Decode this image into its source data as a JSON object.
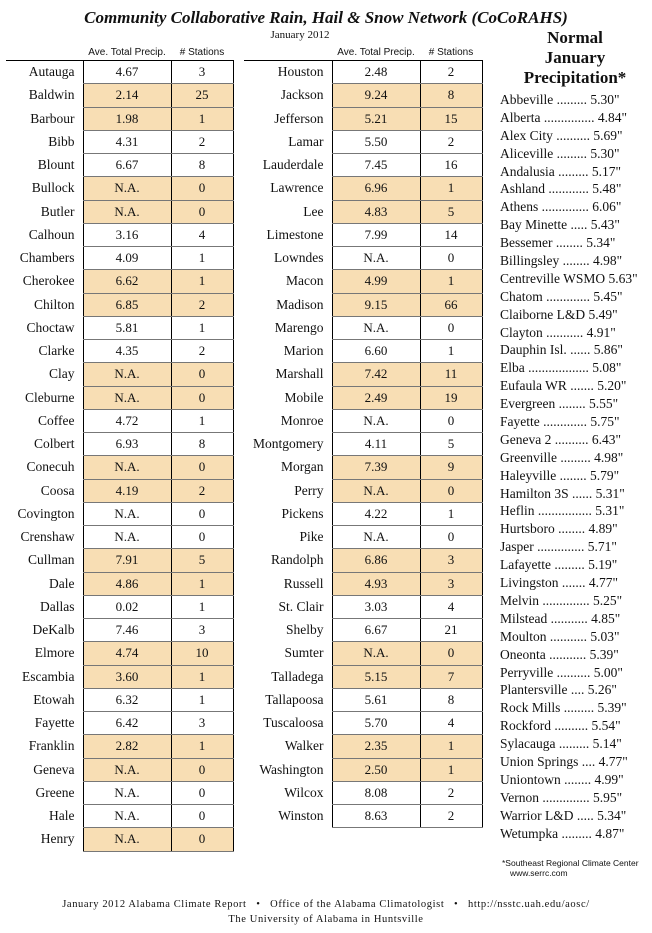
{
  "header": {
    "title": "Community Collaborative Rain, Hail & Snow Network (CoCoRAHS)",
    "subtitle": "January 2012",
    "col_precip": "Ave. Total Precip.",
    "col_stations": "# Stations"
  },
  "left_table": [
    {
      "county": "Autauga",
      "precip": "4.67",
      "stations": "3",
      "shaded": false
    },
    {
      "county": "Baldwin",
      "precip": "2.14",
      "stations": "25",
      "shaded": true
    },
    {
      "county": "Barbour",
      "precip": "1.98",
      "stations": "1",
      "shaded": true
    },
    {
      "county": "Bibb",
      "precip": "4.31",
      "stations": "2",
      "shaded": false
    },
    {
      "county": "Blount",
      "precip": "6.67",
      "stations": "8",
      "shaded": false
    },
    {
      "county": "Bullock",
      "precip": "N.A.",
      "stations": "0",
      "shaded": true
    },
    {
      "county": "Butler",
      "precip": "N.A.",
      "stations": "0",
      "shaded": true
    },
    {
      "county": "Calhoun",
      "precip": "3.16",
      "stations": "4",
      "shaded": false
    },
    {
      "county": "Chambers",
      "precip": "4.09",
      "stations": "1",
      "shaded": false
    },
    {
      "county": "Cherokee",
      "precip": "6.62",
      "stations": "1",
      "shaded": true
    },
    {
      "county": "Chilton",
      "precip": "6.85",
      "stations": "2",
      "shaded": true
    },
    {
      "county": "Choctaw",
      "precip": "5.81",
      "stations": "1",
      "shaded": false
    },
    {
      "county": "Clarke",
      "precip": "4.35",
      "stations": "2",
      "shaded": false
    },
    {
      "county": "Clay",
      "precip": "N.A.",
      "stations": "0",
      "shaded": true
    },
    {
      "county": "Cleburne",
      "precip": "N.A.",
      "stations": "0",
      "shaded": true
    },
    {
      "county": "Coffee",
      "precip": "4.72",
      "stations": "1",
      "shaded": false
    },
    {
      "county": "Colbert",
      "precip": "6.93",
      "stations": "8",
      "shaded": false
    },
    {
      "county": "Conecuh",
      "precip": "N.A.",
      "stations": "0",
      "shaded": true
    },
    {
      "county": "Coosa",
      "precip": "4.19",
      "stations": "2",
      "shaded": true
    },
    {
      "county": "Covington",
      "precip": "N.A.",
      "stations": "0",
      "shaded": false
    },
    {
      "county": "Crenshaw",
      "precip": "N.A.",
      "stations": "0",
      "shaded": false
    },
    {
      "county": "Cullman",
      "precip": "7.91",
      "stations": "5",
      "shaded": true
    },
    {
      "county": "Dale",
      "precip": "4.86",
      "stations": "1",
      "shaded": true
    },
    {
      "county": "Dallas",
      "precip": "0.02",
      "stations": "1",
      "shaded": false
    },
    {
      "county": "DeKalb",
      "precip": "7.46",
      "stations": "3",
      "shaded": false
    },
    {
      "county": "Elmore",
      "precip": "4.74",
      "stations": "10",
      "shaded": true
    },
    {
      "county": "Escambia",
      "precip": "3.60",
      "stations": "1",
      "shaded": true
    },
    {
      "county": "Etowah",
      "precip": "6.32",
      "stations": "1",
      "shaded": false
    },
    {
      "county": "Fayette",
      "precip": "6.42",
      "stations": "3",
      "shaded": false
    },
    {
      "county": "Franklin",
      "precip": "2.82",
      "stations": "1",
      "shaded": true
    },
    {
      "county": "Geneva",
      "precip": "N.A.",
      "stations": "0",
      "shaded": true
    },
    {
      "county": "Greene",
      "precip": "N.A.",
      "stations": "0",
      "shaded": false
    },
    {
      "county": "Hale",
      "precip": "N.A.",
      "stations": "0",
      "shaded": false
    },
    {
      "county": "Henry",
      "precip": "N.A.",
      "stations": "0",
      "shaded": true
    }
  ],
  "right_table": [
    {
      "county": "Houston",
      "precip": "2.48",
      "stations": "2",
      "shaded": false
    },
    {
      "county": "Jackson",
      "precip": "9.24",
      "stations": "8",
      "shaded": true
    },
    {
      "county": "Jefferson",
      "precip": "5.21",
      "stations": "15",
      "shaded": true
    },
    {
      "county": "Lamar",
      "precip": "5.50",
      "stations": "2",
      "shaded": false
    },
    {
      "county": "Lauderdale",
      "precip": "7.45",
      "stations": "16",
      "shaded": false
    },
    {
      "county": "Lawrence",
      "precip": "6.96",
      "stations": "1",
      "shaded": true
    },
    {
      "county": "Lee",
      "precip": "4.83",
      "stations": "5",
      "shaded": true
    },
    {
      "county": "Limestone",
      "precip": "7.99",
      "stations": "14",
      "shaded": false
    },
    {
      "county": "Lowndes",
      "precip": "N.A.",
      "stations": "0",
      "shaded": false
    },
    {
      "county": "Macon",
      "precip": "4.99",
      "stations": "1",
      "shaded": true
    },
    {
      "county": "Madison",
      "precip": "9.15",
      "stations": "66",
      "shaded": true
    },
    {
      "county": "Marengo",
      "precip": "N.A.",
      "stations": "0",
      "shaded": false
    },
    {
      "county": "Marion",
      "precip": "6.60",
      "stations": "1",
      "shaded": false
    },
    {
      "county": "Marshall",
      "precip": "7.42",
      "stations": "11",
      "shaded": true
    },
    {
      "county": "Mobile",
      "precip": "2.49",
      "stations": "19",
      "shaded": true
    },
    {
      "county": "Monroe",
      "precip": "N.A.",
      "stations": "0",
      "shaded": false
    },
    {
      "county": "Montgomery",
      "precip": "4.11",
      "stations": "5",
      "shaded": false
    },
    {
      "county": "Morgan",
      "precip": "7.39",
      "stations": "9",
      "shaded": true
    },
    {
      "county": "Perry",
      "precip": "N.A.",
      "stations": "0",
      "shaded": true
    },
    {
      "county": "Pickens",
      "precip": "4.22",
      "stations": "1",
      "shaded": false
    },
    {
      "county": "Pike",
      "precip": "N.A.",
      "stations": "0",
      "shaded": false
    },
    {
      "county": "Randolph",
      "precip": "6.86",
      "stations": "3",
      "shaded": true
    },
    {
      "county": "Russell",
      "precip": "4.93",
      "stations": "3",
      "shaded": true
    },
    {
      "county": "St. Clair",
      "precip": "3.03",
      "stations": "4",
      "shaded": false
    },
    {
      "county": "Shelby",
      "precip": "6.67",
      "stations": "21",
      "shaded": false
    },
    {
      "county": "Sumter",
      "precip": "N.A.",
      "stations": "0",
      "shaded": true
    },
    {
      "county": "Talladega",
      "precip": "5.15",
      "stations": "7",
      "shaded": true
    },
    {
      "county": "Tallapoosa",
      "precip": "5.61",
      "stations": "8",
      "shaded": false
    },
    {
      "county": "Tuscaloosa",
      "precip": "5.70",
      "stations": "4",
      "shaded": false
    },
    {
      "county": "Walker",
      "precip": "2.35",
      "stations": "1",
      "shaded": true
    },
    {
      "county": "Washington",
      "precip": "2.50",
      "stations": "1",
      "shaded": true
    },
    {
      "county": "Wilcox",
      "precip": "8.08",
      "stations": "2",
      "shaded": false
    },
    {
      "county": "Winston",
      "precip": "8.63",
      "stations": "2",
      "shaded": false
    }
  ],
  "normal_precip": {
    "title_line1": "Normal",
    "title_line2": "January",
    "title_line3": "Precipitation*",
    "entries": [
      {
        "station": "Abbeville",
        "dots": " .........",
        "value": "5.30\""
      },
      {
        "station": "Alberta",
        "dots": " ...............",
        "value": "4.84\""
      },
      {
        "station": "Alex City",
        "dots": " ..........",
        "value": "5.69\""
      },
      {
        "station": "Aliceville",
        "dots": " .........",
        "value": "5.30\""
      },
      {
        "station": "Andalusia",
        "dots": " .........",
        "value": "5.17\""
      },
      {
        "station": "Ashland",
        "dots": " ............",
        "value": "5.48\""
      },
      {
        "station": "Athens",
        "dots": " ..............",
        "value": "6.06\""
      },
      {
        "station": "Bay Minette",
        "dots": " .....",
        "value": "5.43\""
      },
      {
        "station": "Bessemer",
        "dots": " ........",
        "value": "5.34\""
      },
      {
        "station": "Billingsley",
        "dots": " ........",
        "value": "4.98\""
      },
      {
        "station": "Centreville WSMO",
        "dots": "",
        "value": "5.63\""
      },
      {
        "station": "Chatom",
        "dots": " .............",
        "value": "5.45\""
      },
      {
        "station": "Claiborne L&D",
        "dots": "",
        "value": "5.49\""
      },
      {
        "station": "Clayton",
        "dots": " ...........",
        "value": "4.91\""
      },
      {
        "station": "Dauphin Isl.",
        "dots": " ......",
        "value": "5.86\""
      },
      {
        "station": "Elba",
        "dots": " ..................",
        "value": "5.08\""
      },
      {
        "station": "Eufaula WR",
        "dots": " .......",
        "value": "5.20\""
      },
      {
        "station": "Evergreen",
        "dots": " ........",
        "value": "5.55\""
      },
      {
        "station": "Fayette",
        "dots": " .............",
        "value": "5.75\""
      },
      {
        "station": "Geneva 2",
        "dots": " ..........",
        "value": "6.43\""
      },
      {
        "station": "Greenville",
        "dots": " .........",
        "value": "4.98\""
      },
      {
        "station": "Haleyville",
        "dots": " ........",
        "value": "5.79\""
      },
      {
        "station": "Hamilton 3S",
        "dots": " ......",
        "value": "5.31\""
      },
      {
        "station": "Heflin",
        "dots": " ................",
        "value": "5.31\""
      },
      {
        "station": "Hurtsboro",
        "dots": " ........",
        "value": "4.89\""
      },
      {
        "station": "Jasper",
        "dots": " ..............",
        "value": "5.71\""
      },
      {
        "station": "Lafayette",
        "dots": " .........",
        "value": "5.19\""
      },
      {
        "station": "Livingston",
        "dots": " .......",
        "value": "4.77\""
      },
      {
        "station": "Melvin",
        "dots": " ..............",
        "value": "5.25\""
      },
      {
        "station": "Milstead",
        "dots": " ...........",
        "value": "4.85\""
      },
      {
        "station": "Moulton",
        "dots": " ...........",
        "value": "5.03\""
      },
      {
        "station": "Oneonta",
        "dots": " ...........",
        "value": "5.39\""
      },
      {
        "station": "Perryville",
        "dots": " ..........",
        "value": "5.00\""
      },
      {
        "station": "Plantersville",
        "dots": " ....",
        "value": "5.26\""
      },
      {
        "station": "Rock Mills",
        "dots": " .........",
        "value": "5.39\""
      },
      {
        "station": "Rockford",
        "dots": " ..........",
        "value": "5.54\""
      },
      {
        "station": "Sylacauga",
        "dots": " .........",
        "value": "5.14\""
      },
      {
        "station": "Union Springs",
        "dots": " ....",
        "value": "4.77\""
      },
      {
        "station": "Uniontown",
        "dots": " ........",
        "value": "4.99\""
      },
      {
        "station": "Vernon",
        "dots": " ..............",
        "value": "5.95\""
      },
      {
        "station": "Warrior L&D",
        "dots": " .....",
        "value": "5.34\""
      },
      {
        "station": "Wetumpka",
        "dots": " .........",
        "value": "4.87\""
      }
    ],
    "footnote_line1": "*Southeast Regional Climate Center",
    "footnote_line2": "www.serrc.com"
  },
  "footer": {
    "line1": "January 2012 Alabama Climate Report   •   Office of the Alabama Climatologist   •   http://nsstc.uah.edu/aosc/",
    "line2": "The University of Alabama in Huntsville"
  },
  "colors": {
    "shade": "#f8deb4"
  }
}
